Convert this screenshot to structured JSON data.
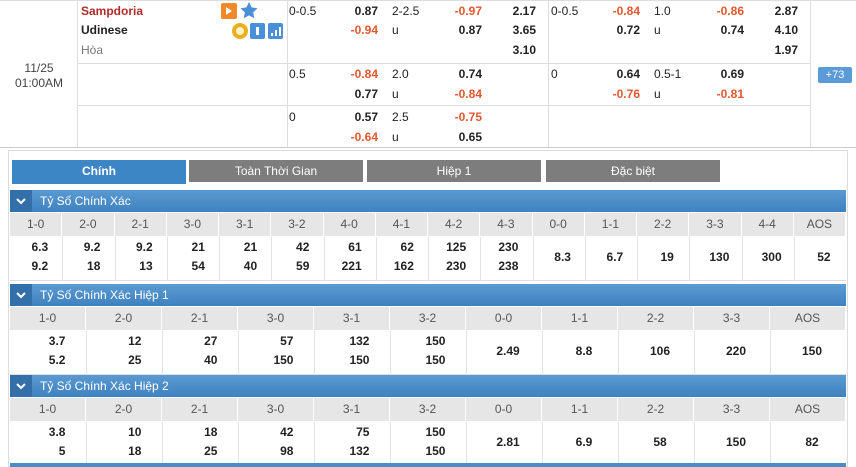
{
  "match": {
    "date": "11/25",
    "time": "01:00AM",
    "home": "Sampdoria",
    "away": "Udinese",
    "draw": "Hòa",
    "more": "+73",
    "lines": [
      {
        "hdp": {
          "line": "0-0.5",
          "home": "0.87",
          "away": "-0.94"
        },
        "ou": {
          "line": "2-2.5",
          "over": "-0.97",
          "u": "u",
          "under": "0.87"
        },
        "x12": [
          "2.17",
          "3.65",
          "3.10"
        ],
        "h1_hdp": {
          "line": "0-0.5",
          "home": "-0.84",
          "away": "0.72"
        },
        "h1_ou": {
          "line": "1.0",
          "over": "-0.86",
          "u": "u",
          "under": "0.74"
        },
        "h1_x12": [
          "2.87",
          "4.10",
          "1.97"
        ]
      },
      {
        "hdp": {
          "line": "0.5",
          "home": "-0.84",
          "away": "0.77"
        },
        "ou": {
          "line": "2.0",
          "over": "0.74",
          "u": "u",
          "under": "-0.84"
        },
        "h1_hdp": {
          "line": "0",
          "home": "0.64",
          "away": "-0.76"
        },
        "h1_ou": {
          "line": "0.5-1",
          "over": "0.69",
          "u": "u",
          "under": "-0.81"
        }
      },
      {
        "hdp": {
          "line": "0",
          "home": "0.57",
          "away": "-0.64"
        },
        "ou": {
          "line": "2.5",
          "over": "-0.75",
          "u": "u",
          "under": "0.65"
        }
      }
    ]
  },
  "tabs": [
    "Chính",
    "Toàn Thời Gian",
    "Hiệp 1",
    "Đặc biệt"
  ],
  "sections": [
    {
      "title": "Tỷ Số Chính Xác",
      "headers": [
        "1-0",
        "2-0",
        "2-1",
        "3-0",
        "3-1",
        "3-2",
        "4-0",
        "4-1",
        "4-2",
        "4-3",
        "0-0",
        "1-1",
        "2-2",
        "3-3",
        "4-4",
        "AOS"
      ],
      "values": [
        [
          "6.3",
          "9.2"
        ],
        [
          "9.2",
          "18"
        ],
        [
          "9.2",
          "13"
        ],
        [
          "21",
          "54"
        ],
        [
          "21",
          "40"
        ],
        [
          "42",
          "59"
        ],
        [
          "61",
          "221"
        ],
        [
          "62",
          "162"
        ],
        [
          "125",
          "230"
        ],
        [
          "230",
          "238"
        ],
        [
          "8.3"
        ],
        [
          "6.7"
        ],
        [
          "19"
        ],
        [
          "130"
        ],
        [
          "300"
        ],
        [
          "52"
        ]
      ]
    },
    {
      "title": "Tỷ Số Chính Xác Hiệp 1",
      "headers": [
        "1-0",
        "2-0",
        "2-1",
        "3-0",
        "3-1",
        "3-2",
        "0-0",
        "1-1",
        "2-2",
        "3-3",
        "AOS"
      ],
      "values": [
        [
          "3.7",
          "5.2"
        ],
        [
          "12",
          "25"
        ],
        [
          "27",
          "40"
        ],
        [
          "57",
          "150"
        ],
        [
          "132",
          "150"
        ],
        [
          "150",
          "150"
        ],
        [
          "2.49"
        ],
        [
          "8.8"
        ],
        [
          "106"
        ],
        [
          "220"
        ],
        [
          "150"
        ]
      ]
    },
    {
      "title": "Tỷ Số Chính Xác Hiệp 2",
      "headers": [
        "1-0",
        "2-0",
        "2-1",
        "3-0",
        "3-1",
        "3-2",
        "0-0",
        "1-1",
        "2-2",
        "3-3",
        "AOS"
      ],
      "values": [
        [
          "3.8",
          "5"
        ],
        [
          "10",
          "18"
        ],
        [
          "18",
          "25"
        ],
        [
          "42",
          "98"
        ],
        [
          "75",
          "132"
        ],
        [
          "150",
          "150"
        ],
        [
          "2.81"
        ],
        [
          "6.9"
        ],
        [
          "58"
        ],
        [
          "150"
        ],
        [
          "82"
        ]
      ]
    }
  ]
}
